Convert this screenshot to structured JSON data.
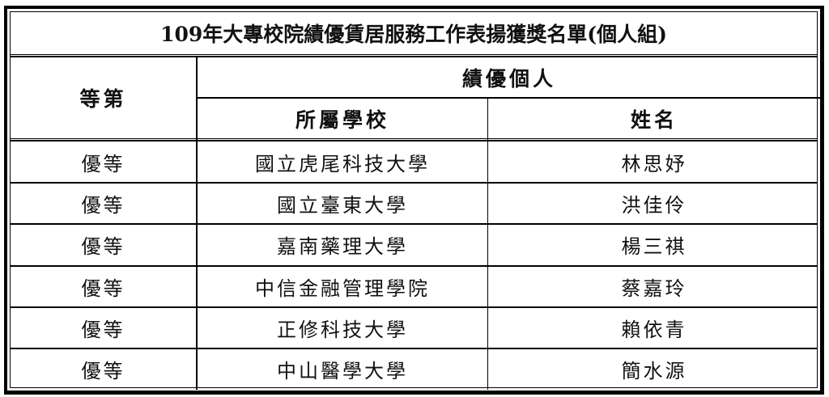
{
  "title": "109年大專校院績優賃居服務工作表揚獲獎名單(個人組)",
  "headers": {
    "rank": "等第",
    "group": "績優個人",
    "school": "所屬學校",
    "name": "姓名"
  },
  "rows": [
    {
      "rank": "優等",
      "school": "國立虎尾科技大學",
      "name": "林思妤"
    },
    {
      "rank": "優等",
      "school": "國立臺東大學",
      "name": "洪佳伶"
    },
    {
      "rank": "優等",
      "school": "嘉南藥理大學",
      "name": "楊三祺"
    },
    {
      "rank": "優等",
      "school": "中信金融管理學院",
      "name": "蔡嘉玲"
    },
    {
      "rank": "優等",
      "school": "正修科技大學",
      "name": "賴依青"
    },
    {
      "rank": "優等",
      "school": "中山醫學大學",
      "name": "簡水源"
    }
  ]
}
